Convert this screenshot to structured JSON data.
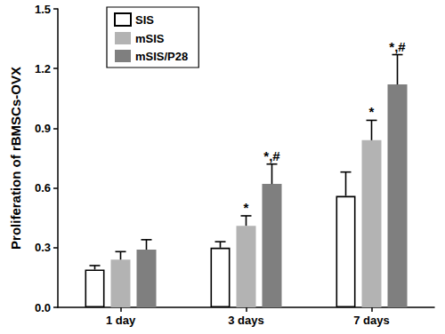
{
  "chart_data": {
    "type": "bar",
    "y_label": "Proliferation of rBMSCs-OVX",
    "categories": [
      "1 day",
      "3 days",
      "7 days"
    ],
    "series": [
      {
        "name": "SIS",
        "color": "#ffffff",
        "values": [
          0.19,
          0.3,
          0.56
        ],
        "error": [
          0.02,
          0.03,
          0.12
        ],
        "annotations": [
          null,
          null,
          null
        ]
      },
      {
        "name": "mSIS",
        "color": "#b3b3b3",
        "values": [
          0.24,
          0.41,
          0.84
        ],
        "error": [
          0.04,
          0.05,
          0.1
        ],
        "annotations": [
          null,
          "*",
          "*"
        ]
      },
      {
        "name": "mSIS/P28",
        "color": "#7f7f7f",
        "values": [
          0.29,
          0.62,
          1.12
        ],
        "error": [
          0.05,
          0.1,
          0.15
        ],
        "annotations": [
          null,
          "*,#",
          "*,#"
        ]
      }
    ],
    "ylim": [
      0,
      1.5
    ],
    "yticks": [
      {
        "value": 0,
        "label": "0.0"
      },
      0.3,
      0.6,
      0.9,
      1.2,
      1.5
    ],
    "grid": false,
    "legend": "upper left"
  }
}
